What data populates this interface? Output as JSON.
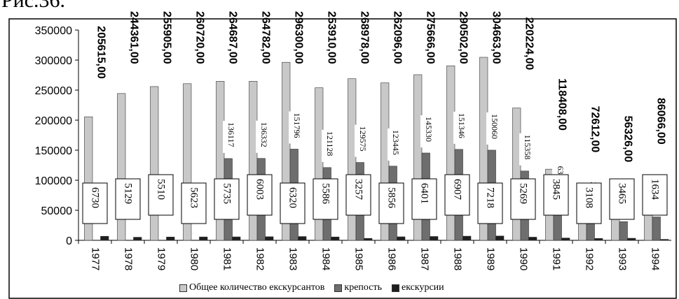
{
  "page_fragment": "Рис.36.",
  "chart_data": {
    "type": "bar",
    "categories": [
      "1977",
      "1978",
      "1979",
      "1980",
      "1981",
      "1982",
      "1983",
      "1984",
      "1985",
      "1986",
      "1987",
      "1988",
      "1989",
      "1990",
      "1991",
      "1992",
      "1993",
      "1994"
    ],
    "series": [
      {
        "name": "Общее количество екскурсантов",
        "color": "#c8c8c8",
        "values": [
          205615,
          244361,
          255905,
          260720,
          264687,
          264782,
          296300,
          253910,
          268978,
          262096,
          275666,
          290502,
          304663,
          220224,
          118408,
          72612,
          56326,
          86066
        ],
        "labels": [
          "205615,00",
          "244361,00",
          "255905,00",
          "260720,00",
          "264687,00",
          "264782,00",
          "296300,00",
          "253910,00",
          "268978,00",
          "262096,00",
          "275666,00",
          "290502,00",
          "304663,00",
          "220224,00",
          "118408,00",
          "72612,00",
          "56326,00",
          "86066,00"
        ]
      },
      {
        "name": "крепость",
        "color": "#6e6e6e",
        "values": [
          null,
          null,
          null,
          null,
          136117,
          136332,
          151796,
          121128,
          129575,
          123445,
          145330,
          151346,
          150060,
          115358,
          63173,
          36840,
          31029,
          38905
        ],
        "labels": [
          "",
          "",
          "",
          "",
          "136117",
          "136332",
          "151796",
          "121128",
          "129575",
          "123445",
          "145330",
          "151346",
          "150060",
          "115358",
          "63173",
          "36840",
          "31029",
          "38905"
        ]
      },
      {
        "name": "екскурсии",
        "color": "#1e1e1e",
        "values": [
          6730,
          5129,
          5510,
          5623,
          5735,
          6003,
          6320,
          5586,
          3257,
          5856,
          6401,
          6907,
          7218,
          5269,
          3845,
          3108,
          3465,
          1634
        ],
        "labels": [
          "6730",
          "5129",
          "5510",
          "5623",
          "5735",
          "6003",
          "6320",
          "5586",
          "3257",
          "5856",
          "6401",
          "6907",
          "7218",
          "5269",
          "3845",
          "3108",
          "3465",
          "1634"
        ]
      }
    ],
    "y_ticks": [
      "0",
      "50000",
      "100000",
      "150000",
      "200000",
      "250000",
      "300000",
      "350000"
    ],
    "ylim": [
      0,
      350000
    ],
    "legend_position": "bottom",
    "grid": false
  }
}
